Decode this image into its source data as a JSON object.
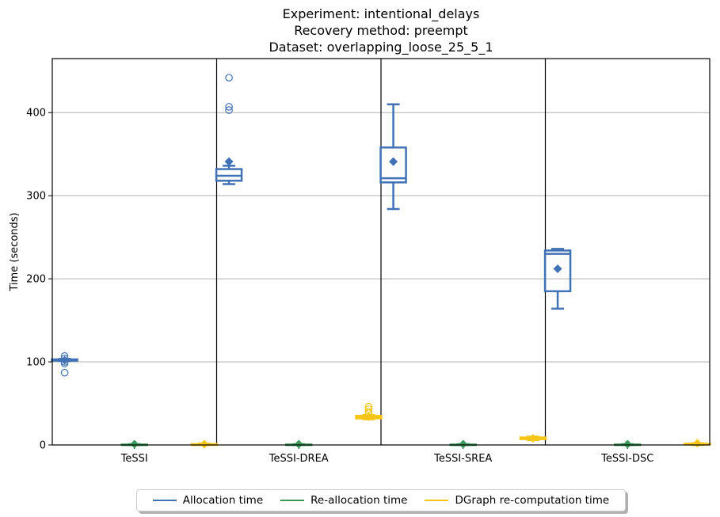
{
  "chart_data": {
    "type": "box",
    "title_lines": [
      "Experiment: intentional_delays",
      "Recovery method: preempt",
      "Dataset: overlapping_loose_25_5_1"
    ],
    "ylabel": "Time (seconds)",
    "xlabel": "",
    "ylim": [
      0,
      465
    ],
    "yticks": [
      0,
      100,
      200,
      300,
      400
    ],
    "grid": "horizontal",
    "legend_position": "bottom-center",
    "categories": [
      "TeSSI",
      "TeSSI-DREA",
      "TeSSI-SREA",
      "TeSSI-DSC"
    ],
    "series": [
      {
        "name": "Allocation time",
        "color": "#4072b5",
        "boxes": [
          {
            "min": 101,
            "q1": 101.5,
            "median": 102.5,
            "q3": 103,
            "max": 103.5,
            "mean": 102,
            "outliers": [
              107,
              104,
              100,
              98,
              87
            ]
          },
          {
            "min": 314,
            "q1": 318,
            "median": 324,
            "q3": 332,
            "max": 336,
            "mean": 341,
            "outliers": [
              442,
              407,
              403
            ]
          },
          {
            "min": 284,
            "q1": 316,
            "median": 321,
            "q3": 358,
            "max": 410,
            "mean": 341,
            "outliers": []
          },
          {
            "min": 164,
            "q1": 185,
            "median": 230,
            "q3": 234,
            "max": 236,
            "mean": 212,
            "outliers": []
          }
        ]
      },
      {
        "name": "Re-allocation time",
        "color": "#3a9a5c",
        "boxes": [
          {
            "min": 0,
            "q1": 0,
            "median": 0,
            "q3": 0.5,
            "max": 1,
            "mean": 1,
            "outliers": []
          },
          {
            "min": 0,
            "q1": 0,
            "median": 0,
            "q3": 0.5,
            "max": 1,
            "mean": 1,
            "outliers": []
          },
          {
            "min": 0,
            "q1": 0,
            "median": 0,
            "q3": 0.5,
            "max": 1,
            "mean": 1,
            "outliers": []
          },
          {
            "min": 0,
            "q1": 0,
            "median": 0,
            "q3": 0.5,
            "max": 1,
            "mean": 1,
            "outliers": []
          }
        ]
      },
      {
        "name": "DGraph re-computation time",
        "color": "#f5c518",
        "boxes": [
          {
            "min": 0,
            "q1": 0,
            "median": 0.5,
            "q3": 1,
            "max": 1.5,
            "mean": 1,
            "outliers": []
          },
          {
            "min": 31,
            "q1": 32,
            "median": 33,
            "q3": 35,
            "max": 36,
            "mean": 34,
            "outliers": [
              46,
              43,
              40,
              38
            ]
          },
          {
            "min": 6,
            "q1": 7,
            "median": 8,
            "q3": 9,
            "max": 10,
            "mean": 8,
            "outliers": []
          },
          {
            "min": 0,
            "q1": 0.5,
            "median": 1,
            "q3": 1.5,
            "max": 2,
            "mean": 2,
            "outliers": []
          }
        ]
      }
    ]
  }
}
